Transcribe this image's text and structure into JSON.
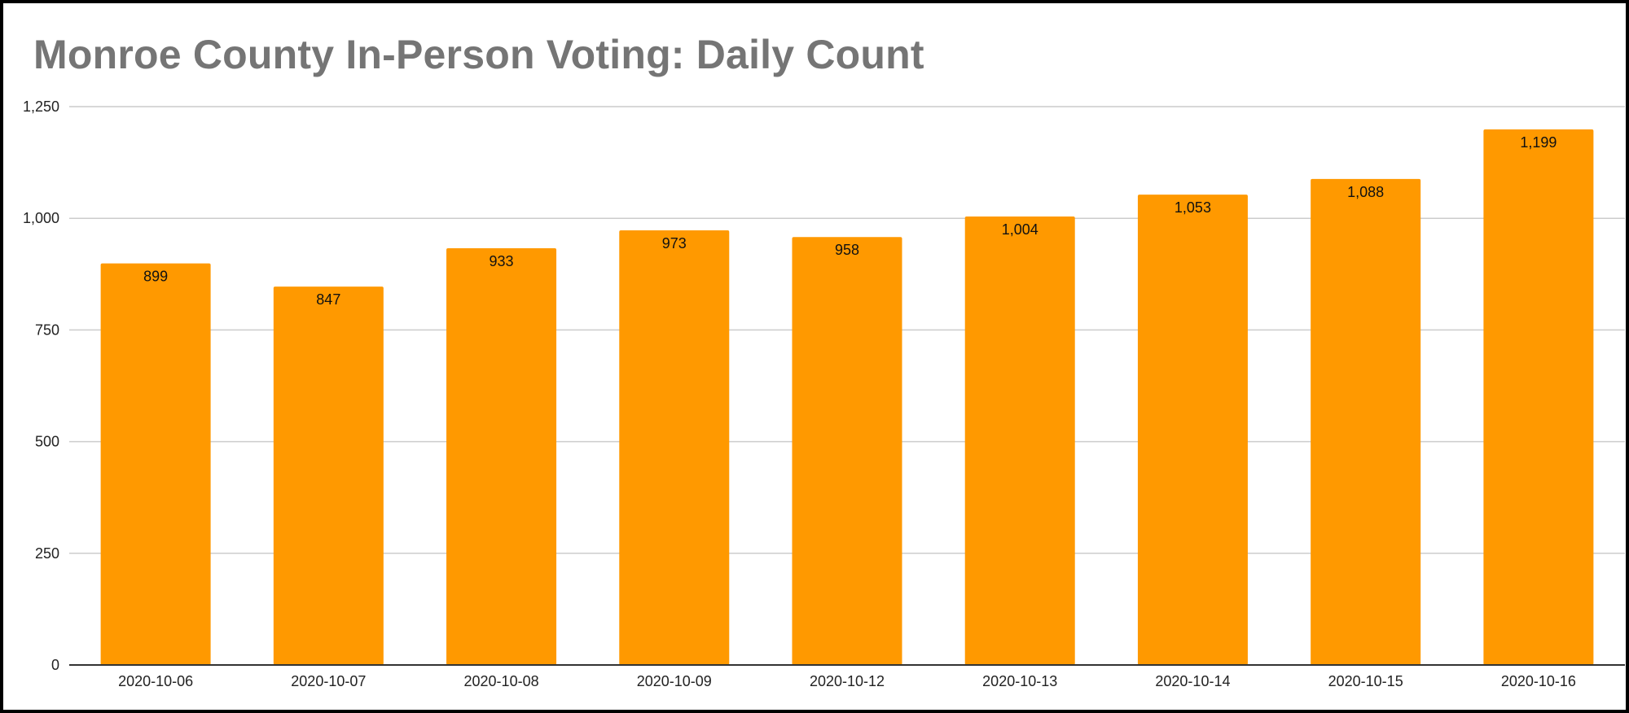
{
  "chart_data": {
    "type": "bar",
    "title": "Monroe County In-Person Voting: Daily Count",
    "xlabel": "",
    "ylabel": "",
    "categories": [
      "2020-10-06",
      "2020-10-07",
      "2020-10-08",
      "2020-10-09",
      "2020-10-12",
      "2020-10-13",
      "2020-10-14",
      "2020-10-15",
      "2020-10-16"
    ],
    "values": [
      899,
      847,
      933,
      973,
      958,
      1004,
      1053,
      1088,
      1199
    ],
    "data_labels": [
      "899",
      "847",
      "933",
      "973",
      "958",
      "1,004",
      "1,053",
      "1,088",
      "1,199"
    ],
    "ylim": [
      0,
      1250
    ],
    "yticks": [
      0,
      250,
      500,
      750,
      1000,
      1250
    ],
    "ytick_labels": [
      "0",
      "250",
      "500",
      "750",
      "1,000",
      "1,250"
    ],
    "grid": true,
    "legend": "none",
    "bar_color": "#FF9900",
    "title_color": "#757575",
    "gridline_color": "#CCCCCC"
  }
}
